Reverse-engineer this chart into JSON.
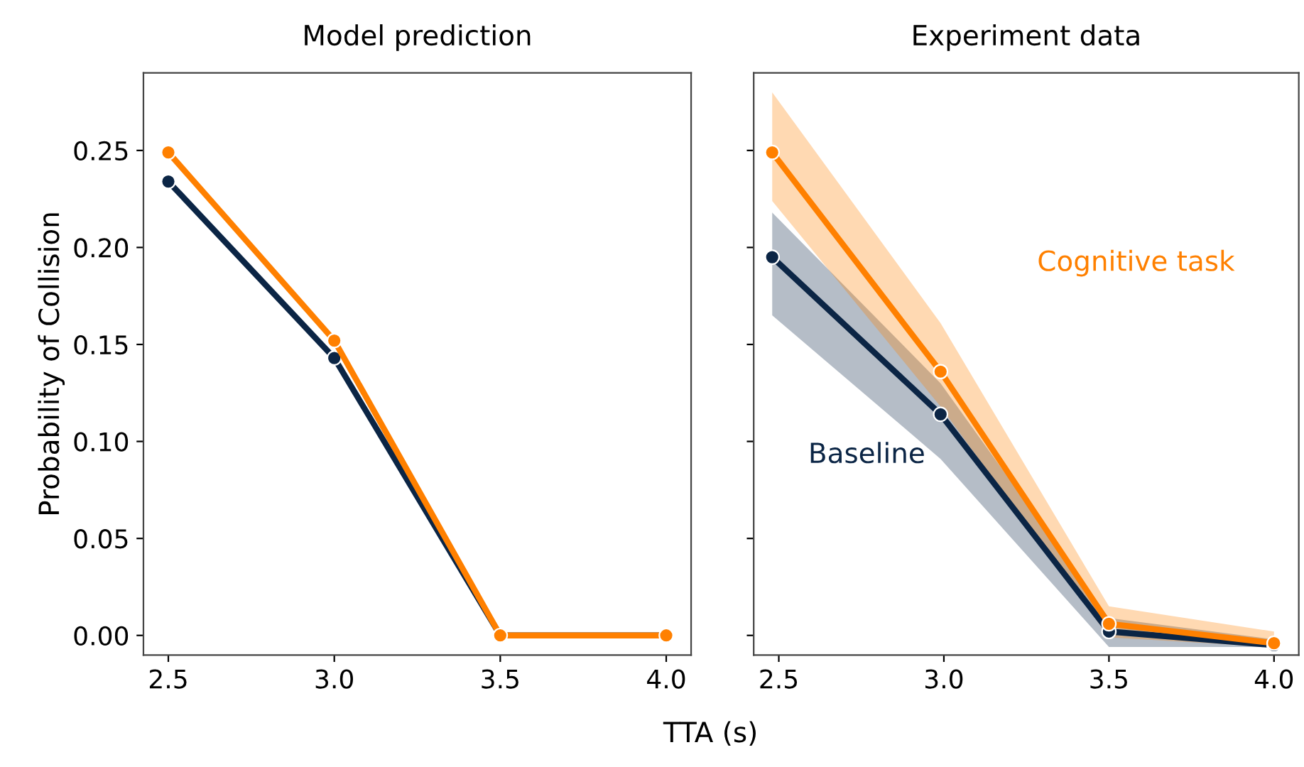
{
  "chart_data": [
    {
      "type": "line",
      "title": "Model prediction",
      "xlabel": "TTA (s)",
      "ylabel": "Probability of Collision",
      "x": [
        2.5,
        3.0,
        3.5,
        4.0
      ],
      "xlim": [
        2.425,
        4.075
      ],
      "ylim": [
        -0.0101,
        0.29
      ],
      "xticks": [
        {
          "value": 2.5,
          "label": "2.5"
        },
        {
          "value": 3.0,
          "label": "3.0"
        },
        {
          "value": 3.5,
          "label": "3.5"
        },
        {
          "value": 4.0,
          "label": "4.0"
        }
      ],
      "yticks": [
        {
          "value": 0,
          "label": "0.00"
        },
        {
          "value": 0.05,
          "label": "0.05"
        },
        {
          "value": 0.1,
          "label": "0.10"
        },
        {
          "value": 0.15,
          "label": "0.15"
        },
        {
          "value": 0.2,
          "label": "0.20"
        },
        {
          "value": 0.25,
          "label": "0.25"
        }
      ],
      "marker": "circle",
      "grid": false,
      "series": [
        {
          "color": "#0b2545",
          "values": [
            0.234,
            0.143,
            0,
            0
          ]
        },
        {
          "color": "#ff8000",
          "values": [
            0.249,
            0.152,
            0,
            0
          ]
        }
      ]
    },
    {
      "type": "line",
      "title": "Experiment data",
      "x": [
        2.48,
        2.99,
        3.5,
        4.0
      ],
      "xlim": [
        2.424,
        4.075
      ],
      "ylim": [
        -0.0101,
        0.29
      ],
      "xticks": [
        {
          "value": 2.5,
          "label": "2.5"
        },
        {
          "value": 3.0,
          "label": "3.0"
        },
        {
          "value": 3.5,
          "label": "3.5"
        },
        {
          "value": 4.0,
          "label": "4.0"
        }
      ],
      "yticks": [
        {
          "value": 0,
          "label": null
        },
        {
          "value": 0.05,
          "label": null
        },
        {
          "value": 0.1,
          "label": null
        },
        {
          "value": 0.15,
          "label": null
        },
        {
          "value": 0.2,
          "label": null
        },
        {
          "value": 0.25,
          "label": null
        }
      ],
      "tick_labels": "x",
      "marker": "circle",
      "grid": false,
      "series": [
        {
          "name": "Baseline",
          "color": "#0b2545",
          "values": [
            0.195,
            0.114,
            0.002,
            -0.005
          ],
          "lower": [
            0.165,
            0.091,
            -0.006,
            -0.006
          ],
          "upper": [
            0.218,
            0.13,
            0.009,
            -0.002
          ]
        },
        {
          "name": "Cognitive task",
          "color": "#ff8000",
          "values": [
            0.249,
            0.136,
            0.006,
            -0.004
          ],
          "lower": [
            0.224,
            0.118,
            -0.001,
            -0.006
          ],
          "upper": [
            0.28,
            0.161,
            0.015,
            0.002
          ]
        }
      ]
    }
  ]
}
